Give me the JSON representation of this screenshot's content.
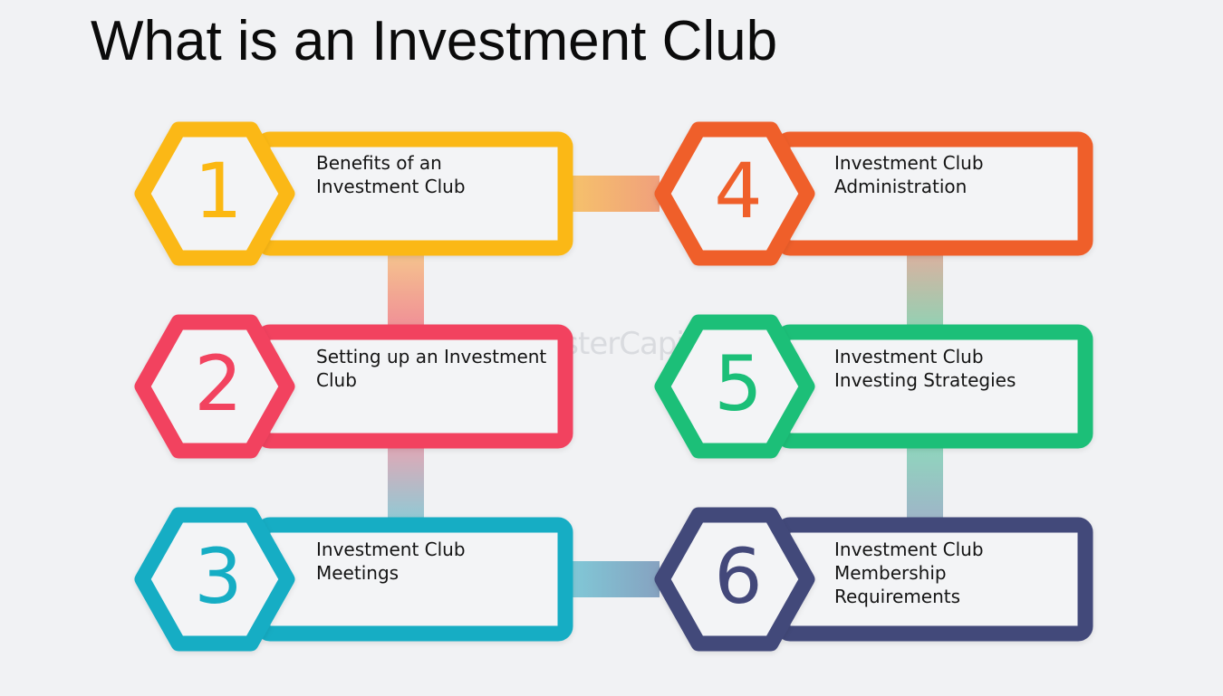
{
  "title": "What is an Investment Club",
  "watermark": "FasterCapital",
  "steps": [
    {
      "number": "1",
      "lines": [
        "Benefits of an",
        "Investment Club"
      ],
      "color": "#fbb812"
    },
    {
      "number": "2",
      "lines": [
        "Setting up an Investment",
        "Club"
      ],
      "color": "#f2435f"
    },
    {
      "number": "3",
      "lines": [
        "Investment Club",
        "Meetings"
      ],
      "color": "#15adc4"
    },
    {
      "number": "4",
      "lines": [
        "Investment Club",
        "Administration"
      ],
      "color": "#ef5f2a"
    },
    {
      "number": "5",
      "lines": [
        "Investment Club",
        "Investing Strategies"
      ],
      "color": "#1bbf78"
    },
    {
      "number": "6",
      "lines": [
        "Investment Club",
        "Membership",
        "Requirements"
      ],
      "color": "#43487a"
    }
  ]
}
